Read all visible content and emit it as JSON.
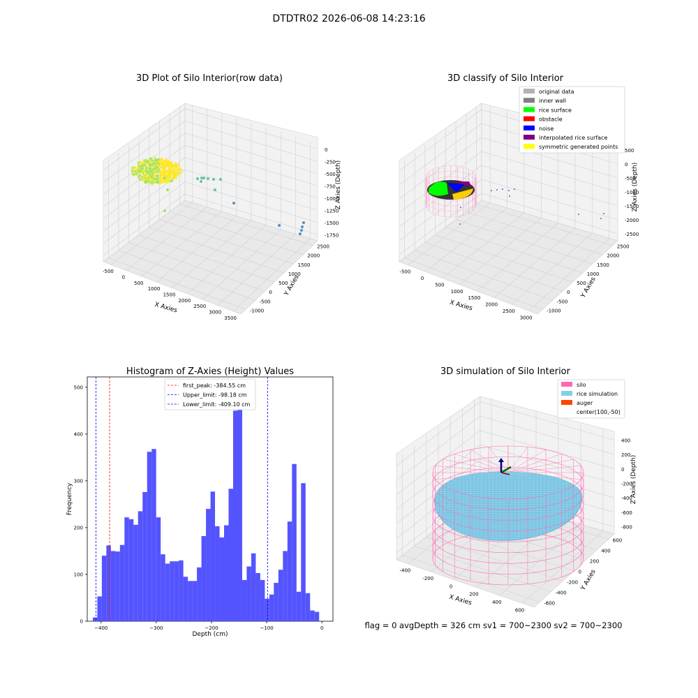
{
  "suptitle": "DTDTR02 2026-06-08 14:23:16",
  "footer": "flag = 0     avgDepth = 326 cm  sv1 = 700~2300  sv2 = 700~2300",
  "chart_data": [
    {
      "type": "scatter3d",
      "title": "3D Plot of Silo Interior(row data)",
      "xlabel": "X Axies",
      "ylabel": "Y Axies",
      "zlabel": "Z Axies (Depth)",
      "xticks": [
        "-500",
        "0",
        "500",
        "1000",
        "1500",
        "2000",
        "2500",
        "3000",
        "3500"
      ],
      "yticks": [
        "-1000",
        "-500",
        "0",
        "500",
        "1000",
        "1500",
        "2000",
        "2500"
      ],
      "zticks": [
        "0",
        "-250",
        "-500",
        "-750",
        "-1000",
        "-1250",
        "-1500",
        "-1750"
      ],
      "colormap": [
        "#5c8fbf",
        "#66c2a5",
        "#9be564",
        "#fde725"
      ]
    },
    {
      "type": "scatter3d",
      "title": "3D classify of Silo Interior",
      "xlabel": "X Axies",
      "ylabel": "Y Axies",
      "zlabel": "Z Axies (Depth)",
      "xticks": [
        "-500",
        "0",
        "500",
        "1000",
        "1500",
        "2000",
        "2500",
        "3000"
      ],
      "yticks": [
        "-1000",
        "-500",
        "0",
        "500",
        "1000",
        "1500",
        "2000",
        "2500"
      ],
      "zticks": [
        "500",
        "0",
        "-500",
        "-1000",
        "-1500",
        "-2000",
        "-2500"
      ],
      "legend": {
        "placement": "top-right",
        "entries": [
          {
            "label": "original data",
            "color": "#b3b3b3"
          },
          {
            "label": "inner wall",
            "color": "#808080"
          },
          {
            "label": "rice surface",
            "color": "#00ff00"
          },
          {
            "label": "obstacle",
            "color": "#ff0000"
          },
          {
            "label": "noise",
            "color": "#0000ff"
          },
          {
            "label": "interpolated rice surface",
            "color": "#800080"
          },
          {
            "label": "symmetric generated points",
            "color": "#ffff00"
          }
        ]
      }
    },
    {
      "type": "bar",
      "title": "Histogram of Z-Axies (Height) Values",
      "xlabel": "Depth (cm)",
      "ylabel": "Frequency",
      "xlim": [
        -425,
        20
      ],
      "ylim": [
        0,
        522
      ],
      "xticks": [
        -400,
        -300,
        -200,
        -100,
        0
      ],
      "yticks": [
        0,
        100,
        200,
        300,
        400,
        500
      ],
      "bin_start": -415,
      "bin_width": 8.2,
      "values": [
        8,
        53,
        140,
        162,
        150,
        149,
        163,
        222,
        218,
        206,
        235,
        276,
        362,
        368,
        222,
        143,
        123,
        128,
        128,
        130,
        95,
        86,
        86,
        115,
        182,
        240,
        277,
        203,
        179,
        205,
        283,
        450,
        460,
        88,
        117,
        145,
        103,
        88,
        48,
        57,
        82,
        110,
        150,
        213,
        336,
        63,
        295,
        60,
        23,
        20
      ],
      "color": "#4b4bff",
      "vlines": [
        {
          "label": "first_peak: -384.55 cm",
          "x": -384.55,
          "color": "#ff0000"
        },
        {
          "label": "Upper_limit: -98.18 cm",
          "x": -98.18,
          "color": "#0000ff"
        },
        {
          "label": "Lower_limit: -409.10 cm",
          "x": -409.1,
          "color": "#0000ff"
        }
      ],
      "legend": {
        "placement": "top-center"
      }
    },
    {
      "type": "surface3d",
      "title": "3D simulation of Silo Interior",
      "xlabel": "X Axies",
      "ylabel": "Y Axies",
      "zlabel": "Z Axies (Depth)",
      "xticks": [
        "-400",
        "-200",
        "0",
        "200",
        "400",
        "600"
      ],
      "yticks": [
        "-600",
        "-400",
        "-200",
        "0",
        "200",
        "400",
        "600"
      ],
      "zticks": [
        "400",
        "200",
        "0",
        "-200",
        "-400",
        "-600",
        "-800"
      ],
      "legend": {
        "placement": "top-right",
        "entries": [
          {
            "label": "silo",
            "color": "#ff69b4"
          },
          {
            "label": "rice simulation",
            "color": "#87ceeb"
          },
          {
            "label": "auger",
            "color": "#ff4500"
          },
          {
            "label": "center(100,-50)",
            "color": ""
          }
        ]
      }
    }
  ]
}
